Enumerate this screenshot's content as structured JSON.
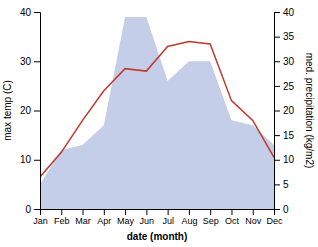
{
  "chart_data": {
    "type": "line",
    "categories": [
      "Jan",
      "Feb",
      "Mar",
      "Apr",
      "May",
      "Jun",
      "Jul",
      "Aug",
      "Sep",
      "Oct",
      "Nov",
      "Dec"
    ],
    "series": [
      {
        "type": "area",
        "color": "#c5cee8",
        "axis": "y2",
        "values": [
          5,
          12,
          13,
          17,
          39,
          39,
          26,
          30,
          30,
          18,
          17,
          13
        ]
      },
      {
        "type": "line",
        "color": "#c0392b",
        "values": [
          6.5,
          11.5,
          18.0,
          24.0,
          28.5,
          28.0,
          33.0,
          34.0,
          33.5,
          22.0,
          18.0,
          10.5
        ]
      }
    ],
    "xlabel": "date (month)",
    "ylabel": "max temp (C)",
    "y2label": "med. precipitation (kg/m2)",
    "ylim": [
      0,
      40
    ],
    "yticks": [
      0,
      10,
      20,
      30,
      40
    ],
    "y2lim": [
      0,
      40
    ],
    "y2ticks": [
      0,
      5,
      10,
      15,
      20,
      25,
      30,
      35,
      40
    ],
    "grid": false
  }
}
